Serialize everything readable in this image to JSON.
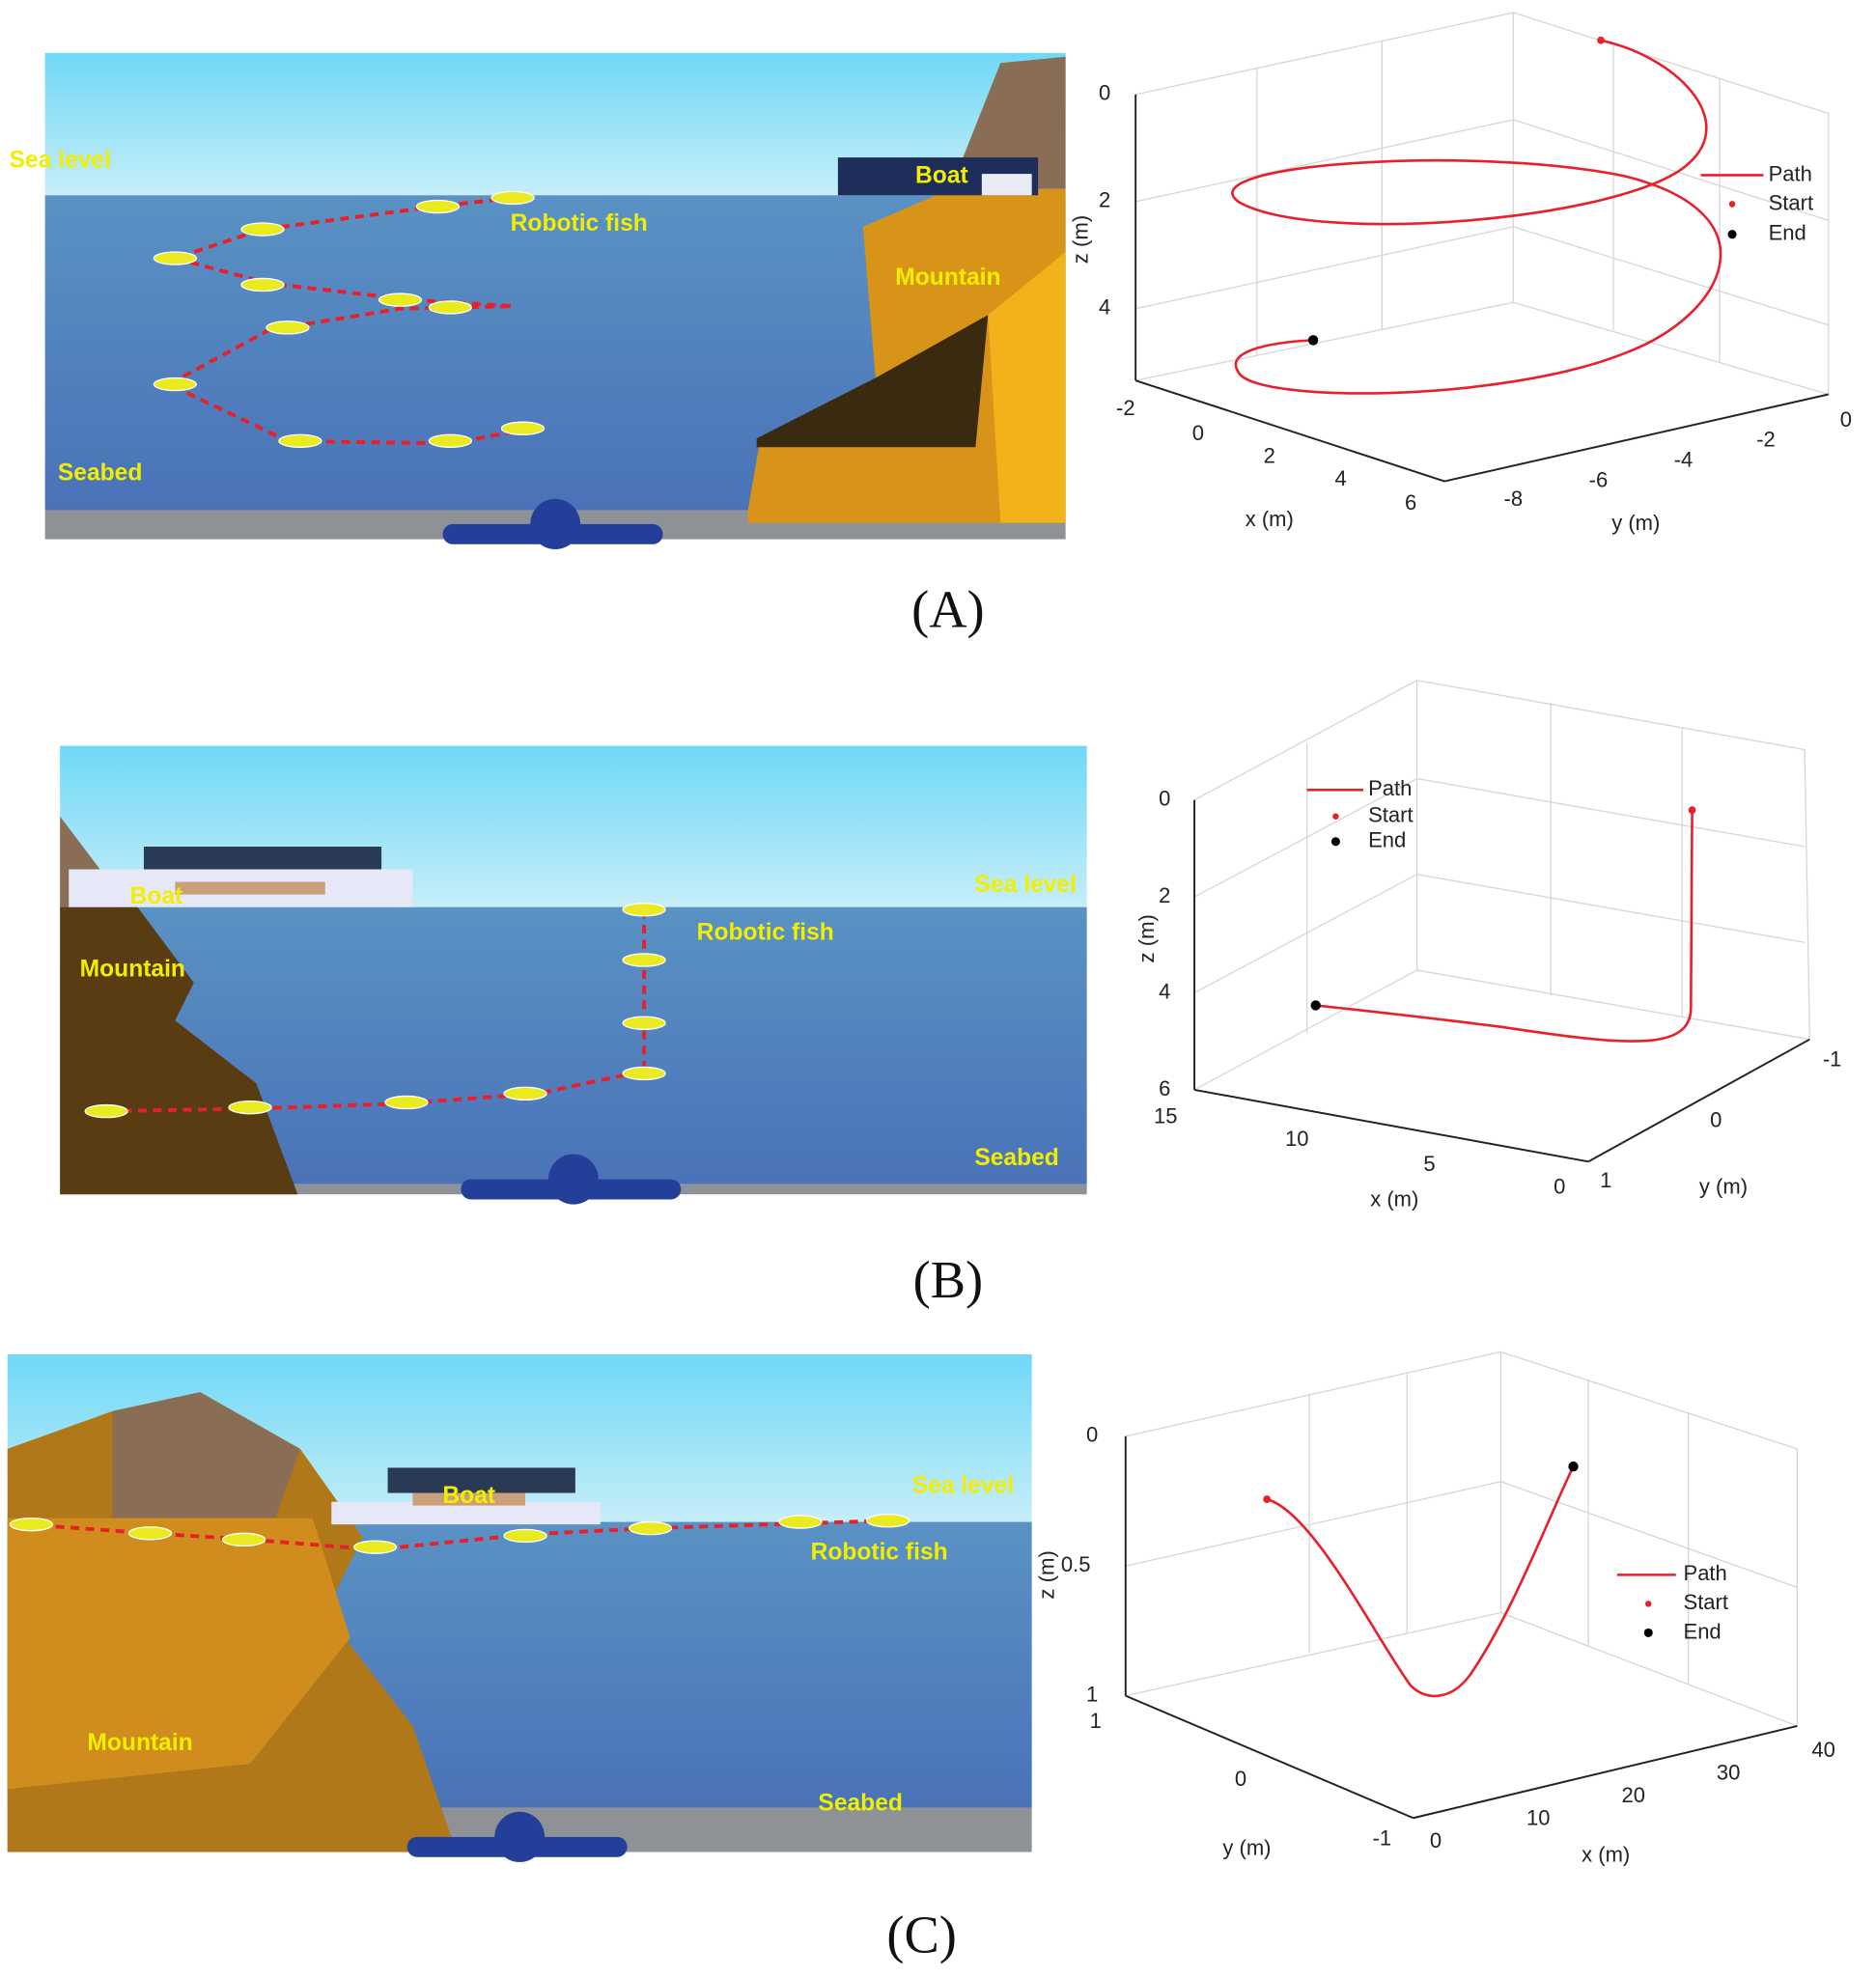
{
  "panels": [
    {
      "label": "(A)",
      "scene": {
        "labels": [
          "Sea level",
          "Boat",
          "Robotic fish",
          "Mountain",
          "Seabed"
        ]
      },
      "plot": {
        "xlabel": "x (m)",
        "ylabel": "y (m)",
        "zlabel": "z (m)",
        "xticks": [
          "-2",
          "0",
          "2",
          "4",
          "6"
        ],
        "yticks": [
          "-8",
          "-6",
          "-4",
          "-2",
          "0"
        ],
        "zticks": [
          "0",
          "2",
          "4"
        ],
        "legend": [
          "Path",
          "Start",
          "End"
        ]
      }
    },
    {
      "label": "(B)",
      "scene": {
        "labels": [
          "Boat",
          "Sea level",
          "Robotic fish",
          "Mountain",
          "Seabed"
        ]
      },
      "plot": {
        "xlabel": "x (m)",
        "ylabel": "y (m)",
        "zlabel": "z (m)",
        "xticks": [
          "15",
          "10",
          "5",
          "0"
        ],
        "yticks": [
          "1",
          "0",
          "-1"
        ],
        "zticks": [
          "0",
          "2",
          "4",
          "6"
        ],
        "legend": [
          "Path",
          "Start",
          "End"
        ]
      }
    },
    {
      "label": "(C)",
      "scene": {
        "labels": [
          "Boat",
          "Sea level",
          "Robotic fish",
          "Mountain",
          "Seabed"
        ]
      },
      "plot": {
        "xlabel": "x (m)",
        "ylabel": "y (m)",
        "zlabel": "z (m)",
        "xticks": [
          "0",
          "10",
          "20",
          "30",
          "40"
        ],
        "yticks": [
          "1",
          "0",
          "-1"
        ],
        "zticks": [
          "0",
          "0.5",
          "1"
        ],
        "legend": [
          "Path",
          "Start",
          "End"
        ]
      }
    }
  ]
}
